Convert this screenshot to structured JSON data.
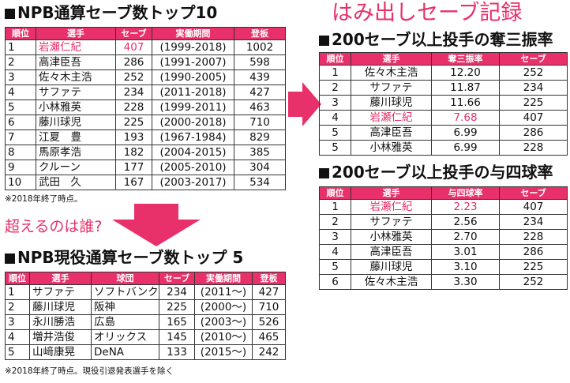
{
  "left_top": {
    "title": "NPB通算セーブ数トップ10",
    "headers": [
      "順位",
      "選手",
      "セーブ",
      "実働期間",
      "登板"
    ],
    "rows": [
      {
        "rank": "1",
        "name": "岩瀬仁紀",
        "saves": "407",
        "period": "(1999-2018)",
        "games": "1002"
      },
      {
        "rank": "2",
        "name": "高津臣吾",
        "saves": "286",
        "period": "(1991-2007)",
        "games": "598"
      },
      {
        "rank": "3",
        "name": "佐々木主浩",
        "saves": "252",
        "period": "(1990-2005)",
        "games": "439"
      },
      {
        "rank": "4",
        "name": "サファテ",
        "saves": "234",
        "period": "(2011-2018)",
        "games": "427"
      },
      {
        "rank": "5",
        "name": "小林雅英",
        "saves": "228",
        "period": "(1999-2011)",
        "games": "463"
      },
      {
        "rank": "6",
        "name": "藤川球児",
        "saves": "225",
        "period": "(2000-2018)",
        "games": "710"
      },
      {
        "rank": "7",
        "name": "江夏　豊",
        "saves": "193",
        "period": "(1967-1984)",
        "games": "829"
      },
      {
        "rank": "8",
        "name": "馬原孝浩",
        "saves": "182",
        "period": "(2004-2015)",
        "games": "385"
      },
      {
        "rank": "9",
        "name": "クルーン",
        "saves": "177",
        "period": "(2005-2010)",
        "games": "304"
      },
      {
        "rank": "10",
        "name": "武田　久",
        "saves": "167",
        "period": "(2003-2017)",
        "games": "534"
      }
    ],
    "note": "※2018年終了時点。"
  },
  "question": "超えるのは誰?",
  "left_bottom": {
    "title": "NPB現役通算セーブ数トップ 5",
    "headers": [
      "順位",
      "選手",
      "球団",
      "セーブ",
      "実働期間",
      "登板"
    ],
    "rows": [
      {
        "rank": "1",
        "name": "サファテ",
        "team": "ソフトバンク",
        "saves": "234",
        "period": "(2011〜)",
        "games": "427"
      },
      {
        "rank": "2",
        "name": "藤川球児",
        "team": "阪神",
        "saves": "225",
        "period": "(2000〜)",
        "games": "710"
      },
      {
        "rank": "3",
        "name": "永川勝浩",
        "team": "広島",
        "saves": "165",
        "period": "(2003〜)",
        "games": "526"
      },
      {
        "rank": "4",
        "name": "増井浩俊",
        "team": "オリックス",
        "saves": "145",
        "period": "(2010〜)",
        "games": "465"
      },
      {
        "rank": "5",
        "name": "山﨑康晃",
        "team": "DeNA",
        "saves": "133",
        "period": "(2015〜)",
        "games": "242"
      }
    ],
    "note": "※2018年終了時点。現役引退発表選手を除く"
  },
  "right_heading": "はみ出しセーブ記録",
  "right_top": {
    "title": "200セーブ以上投手の奪三振率",
    "headers": [
      "順位",
      "選手",
      "奪三振率",
      "セーブ"
    ],
    "rows": [
      {
        "rank": "1",
        "name": "佐々木主浩",
        "rate": "12.20",
        "saves": "252"
      },
      {
        "rank": "2",
        "name": "サファテ",
        "rate": "11.87",
        "saves": "234"
      },
      {
        "rank": "3",
        "name": "藤川球児",
        "rate": "11.66",
        "saves": "225"
      },
      {
        "rank": "4",
        "name": "岩瀬仁紀",
        "rate": "7.68",
        "saves": "407"
      },
      {
        "rank": "5",
        "name": "高津臣吾",
        "rate": "6.99",
        "saves": "286"
      },
      {
        "rank": "5",
        "name": "小林雅英",
        "rate": "6.99",
        "saves": "228"
      }
    ]
  },
  "right_bottom": {
    "title": "200セーブ以上投手の与四球率",
    "headers": [
      "順位",
      "選手",
      "与四球率",
      "セーブ"
    ],
    "rows": [
      {
        "rank": "1",
        "name": "岩瀬仁紀",
        "rate": "2.23",
        "saves": "407"
      },
      {
        "rank": "2",
        "name": "サファテ",
        "rate": "2.56",
        "saves": "234"
      },
      {
        "rank": "3",
        "name": "小林雅英",
        "rate": "2.70",
        "saves": "228"
      },
      {
        "rank": "4",
        "name": "高津臣吾",
        "rate": "3.01",
        "saves": "286"
      },
      {
        "rank": "5",
        "name": "藤川球児",
        "rate": "3.10",
        "saves": "225"
      },
      {
        "rank": "6",
        "name": "佐々木主浩",
        "rate": "3.30",
        "saves": "252"
      }
    ]
  },
  "colors": {
    "accent": "#e8306a",
    "text": "#111111"
  }
}
